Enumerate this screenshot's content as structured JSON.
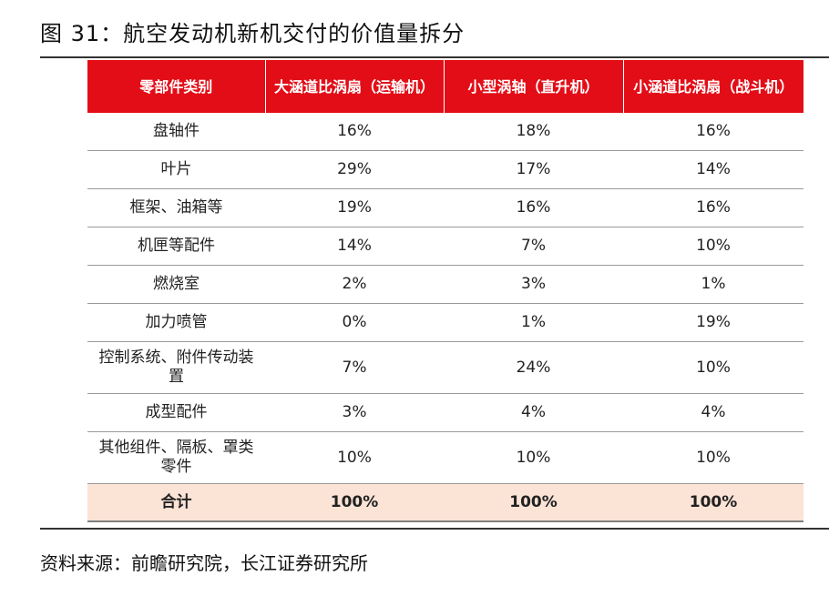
{
  "figure": {
    "title": "图 31：航空发动机新机交付的价值量拆分",
    "source": "资料来源：前瞻研究院，长江证券研究所"
  },
  "table": {
    "headers": [
      "零部件类别",
      "大涵道比涡扇（运输机）",
      "小型涡轴（直升机）",
      "小涵道比涡扇（战斗机）"
    ],
    "rows": [
      [
        "盘轴件",
        "16%",
        "18%",
        "16%"
      ],
      [
        "叶片",
        "29%",
        "17%",
        "14%"
      ],
      [
        "框架、油箱等",
        "19%",
        "16%",
        "16%"
      ],
      [
        "机匣等配件",
        "14%",
        "7%",
        "10%"
      ],
      [
        "燃烧室",
        "2%",
        "3%",
        "1%"
      ],
      [
        "加力喷管",
        "0%",
        "1%",
        "19%"
      ],
      [
        "控制系统、附件传动装置",
        "7%",
        "24%",
        "10%"
      ],
      [
        "成型配件",
        "3%",
        "4%",
        "4%"
      ],
      [
        "其他组件、隔板、罩类零件",
        "10%",
        "10%",
        "10%"
      ],
      [
        "合计",
        "100%",
        "100%",
        "100%"
      ]
    ]
  },
  "colors": {
    "header_bg": "#e30d17",
    "header_text": "#ffffff",
    "total_row_bg": "#fbe3d6",
    "row_divider": "#9a9a9a"
  }
}
